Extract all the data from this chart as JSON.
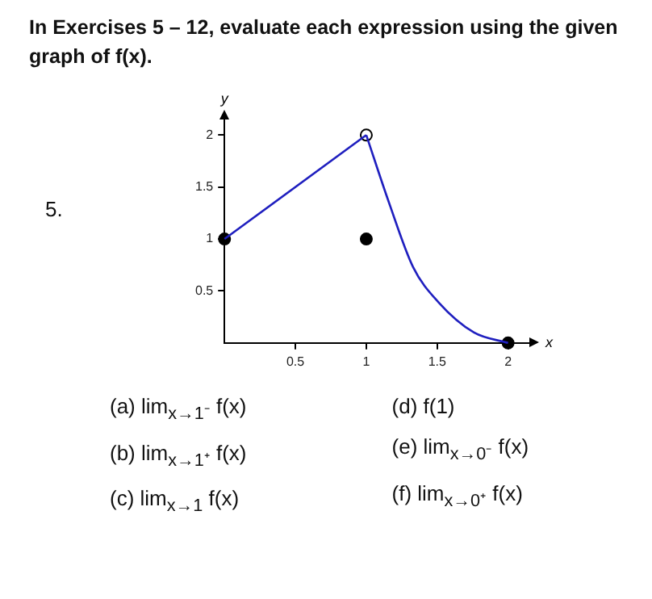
{
  "chart_data": {
    "type": "line",
    "title": "In Exercises 5 – 12, evaluate each expression using the given graph of f(x).",
    "xlabel": "x",
    "ylabel": "y",
    "xlim": [
      0,
      2.15
    ],
    "ylim": [
      0,
      2.15
    ],
    "xticks": [
      0.5,
      1,
      1.5,
      2
    ],
    "yticks": [
      0.5,
      1,
      1.5,
      2
    ],
    "grid": false,
    "legend": false,
    "series": [
      {
        "color": "#1f1fbf",
        "x": [
          0,
          1
        ],
        "values": [
          1,
          2
        ],
        "marker": "none"
      },
      {
        "color": "#1f1fbf",
        "x": [
          1,
          1.16,
          1.33,
          1.51,
          1.76,
          2
        ],
        "values": [
          2,
          1.35,
          0.73,
          0.39,
          0.1,
          0
        ],
        "marker": "none"
      },
      {
        "type": "scatter",
        "color": "#000000",
        "x": [
          0,
          1,
          2
        ],
        "values": [
          1,
          1,
          0
        ],
        "marker": "circle"
      },
      {
        "type": "scatter",
        "color": "#ffffff",
        "x": [
          1
        ],
        "values": [
          2
        ],
        "marker": "circle"
      }
    ],
    "annotations": [
      "5.",
      "(a) lim$_{x→1⁻}$ f(x)",
      "(b) lim$_{x→1⁺}$ f(x)",
      "(c) lim$_{x→1}$ f(x)",
      "(d) f(1)",
      "(e) lim$_{x→0⁻}$ f(x)",
      "(f) lim$_{x→0⁺}$ f(x)"
    ]
  }
}
